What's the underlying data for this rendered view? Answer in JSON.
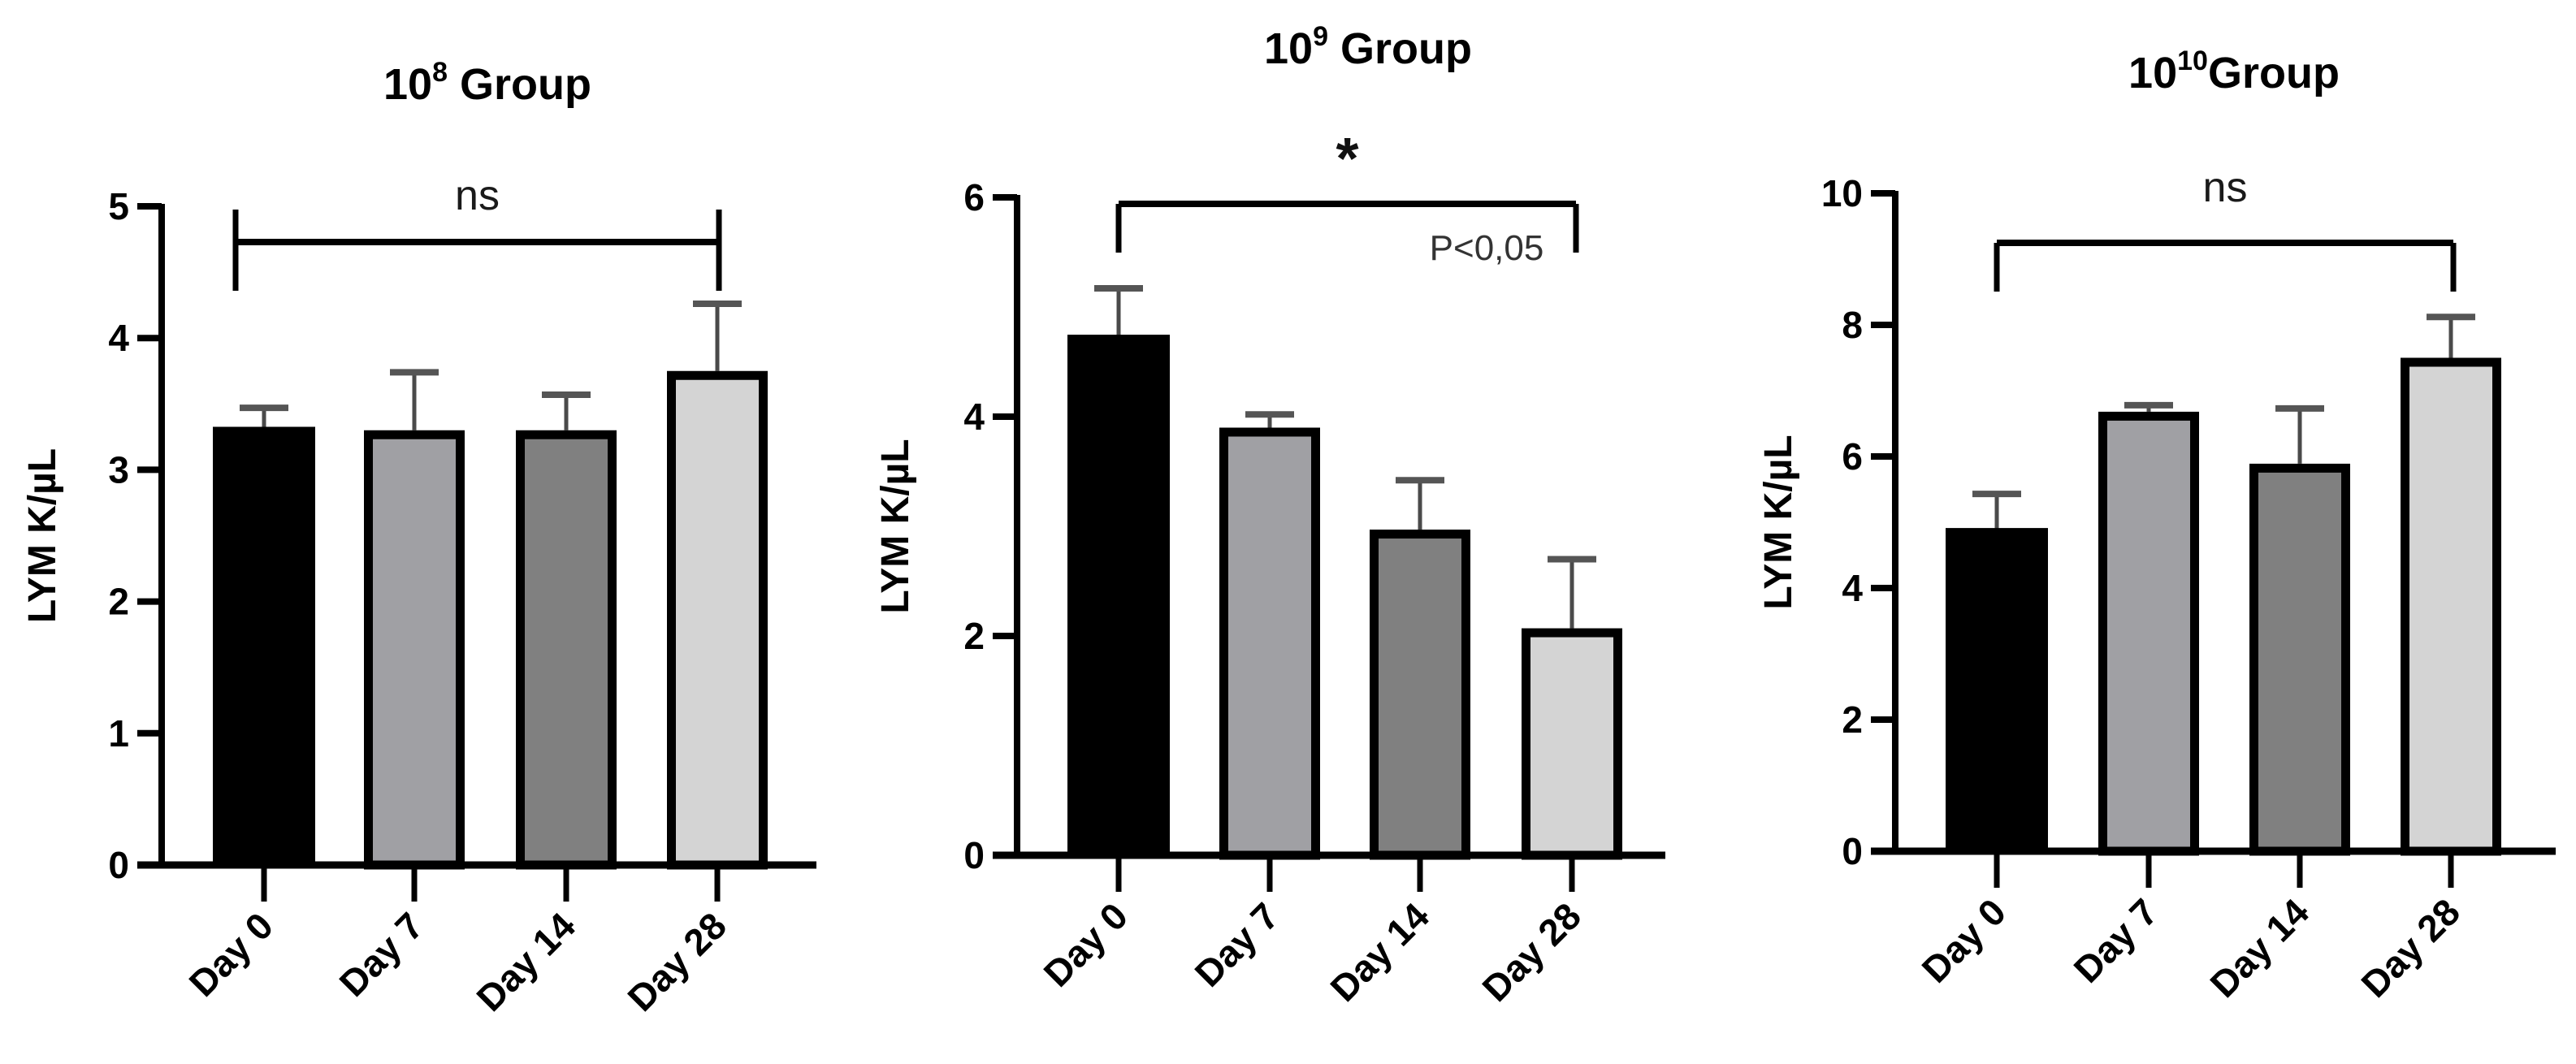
{
  "figure": {
    "panels": [
      {
        "title_base": "10",
        "title_exp": "8",
        "title_suffix": " Group",
        "ylabel": "LYM K/µL",
        "significance": {
          "label": "ns",
          "p_text": "",
          "style": "ns"
        }
      },
      {
        "title_base": "10",
        "title_exp": "9",
        "title_suffix": " Group",
        "ylabel": "LYM K/µL",
        "significance": {
          "label": "*",
          "p_text": "P<0,05",
          "style": "star"
        }
      },
      {
        "title_base": "10",
        "title_exp": "10",
        "title_suffix": "Group",
        "ylabel": "LYM K/µL",
        "significance": {
          "label": "ns",
          "p_text": "",
          "style": "ns"
        }
      }
    ]
  },
  "chart_data": [
    {
      "type": "bar",
      "title": "10^8 Group",
      "xlabel": "",
      "ylabel": "LYM K/µL",
      "categories": [
        "Day 0",
        "Day 7",
        "Day 14",
        "Day 28"
      ],
      "values": [
        3.32,
        3.3,
        3.3,
        3.75
      ],
      "error_upper": [
        3.47,
        3.74,
        3.57,
        4.26
      ],
      "ylim": [
        0,
        5
      ],
      "yticks": [
        0,
        1,
        2,
        3,
        4,
        5
      ],
      "bar_colors": [
        "#000000",
        "#a0a0a4",
        "#808080",
        "#d4d4d4"
      ],
      "annotation": {
        "text": "ns",
        "from": "Day 0",
        "to": "Day 28"
      },
      "grid": false
    },
    {
      "type": "bar",
      "title": "10^9 Group",
      "xlabel": "",
      "ylabel": "LYM K/µL",
      "categories": [
        "Day 0",
        "Day 7",
        "Day 14",
        "Day 28"
      ],
      "values": [
        4.74,
        3.9,
        2.97,
        2.07
      ],
      "error_upper": [
        5.17,
        4.02,
        3.42,
        2.7
      ],
      "ylim": [
        0,
        6
      ],
      "yticks": [
        0,
        2,
        4,
        6
      ],
      "bar_colors": [
        "#000000",
        "#a0a0a4",
        "#808080",
        "#d4d4d4"
      ],
      "annotation": {
        "text": "*",
        "p_text": "P<0,05",
        "from": "Day 0",
        "to": "Day 28"
      },
      "grid": false
    },
    {
      "type": "bar",
      "title": "10^10 Group",
      "xlabel": "",
      "ylabel": "LYM K/µL",
      "categories": [
        "Day 0",
        "Day 7",
        "Day 14",
        "Day 28"
      ],
      "values": [
        4.9,
        6.68,
        5.89,
        7.5
      ],
      "error_upper": [
        5.43,
        6.78,
        6.73,
        8.12
      ],
      "ylim": [
        0,
        10
      ],
      "yticks": [
        0,
        2,
        4,
        6,
        8,
        10
      ],
      "bar_colors": [
        "#000000",
        "#a0a0a4",
        "#808080",
        "#d4d4d4"
      ],
      "annotation": {
        "text": "ns",
        "from": "Day 0",
        "to": "Day 28"
      },
      "grid": false
    }
  ]
}
